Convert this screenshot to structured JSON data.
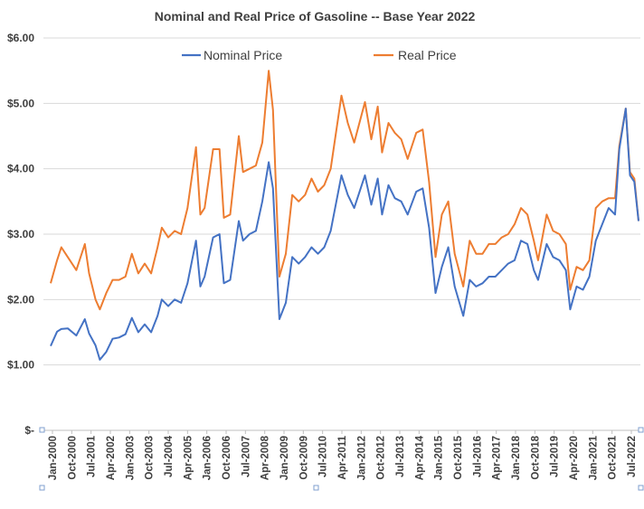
{
  "chart_data": {
    "type": "line",
    "title": "Nominal and Real Price of Gasoline --  Base Year 2022",
    "xlabel": "",
    "ylabel": "",
    "ylim": [
      0,
      6
    ],
    "yticks": [
      0,
      1,
      2,
      3,
      4,
      5,
      6
    ],
    "ytick_labels": [
      "$-",
      "$1.00",
      "$2.00",
      "$3.00",
      "$4.00",
      "$5.00",
      "$6.00"
    ],
    "xtick_labels": [
      "Jan-2000",
      "Oct-2000",
      "Jul-2001",
      "Apr-2002",
      "Jan-2003",
      "Oct-2003",
      "Jul-2004",
      "Apr-2005",
      "Jan-2006",
      "Oct-2006",
      "Jul-2007",
      "Apr-2008",
      "Jan-2009",
      "Oct-2009",
      "Jul-2010",
      "Apr-2011",
      "Jan-2012",
      "Oct-2012",
      "Jul-2013",
      "Apr-2014",
      "Jan-2015",
      "Oct-2015",
      "Jul-2016",
      "Apr-2017",
      "Jan-2018",
      "Oct-2018",
      "Jul-2019",
      "Apr-2020",
      "Jan-2021",
      "Oct-2021",
      "Jul-2022"
    ],
    "grid": true,
    "legend_position": "top-center",
    "series": [
      {
        "name": "Nominal Price",
        "color": "#4472c4",
        "x": [
          "2000-01",
          "2000-04",
          "2000-06",
          "2000-09",
          "2001-01",
          "2001-05",
          "2001-07",
          "2001-10",
          "2001-12",
          "2002-03",
          "2002-06",
          "2002-09",
          "2002-12",
          "2003-03",
          "2003-06",
          "2003-09",
          "2003-12",
          "2004-03",
          "2004-05",
          "2004-08",
          "2004-11",
          "2005-02",
          "2005-05",
          "2005-09",
          "2005-11",
          "2006-01",
          "2006-05",
          "2006-08",
          "2006-10",
          "2007-01",
          "2007-05",
          "2007-07",
          "2007-10",
          "2008-01",
          "2008-04",
          "2008-07",
          "2008-09",
          "2008-12",
          "2009-03",
          "2009-06",
          "2009-09",
          "2009-12",
          "2010-03",
          "2010-06",
          "2010-09",
          "2010-12",
          "2011-05",
          "2011-08",
          "2011-11",
          "2012-04",
          "2012-07",
          "2012-10",
          "2012-12",
          "2013-03",
          "2013-06",
          "2013-09",
          "2013-12",
          "2014-04",
          "2014-07",
          "2014-10",
          "2015-01",
          "2015-04",
          "2015-07",
          "2015-10",
          "2016-02",
          "2016-05",
          "2016-08",
          "2016-11",
          "2017-02",
          "2017-05",
          "2017-08",
          "2017-11",
          "2018-02",
          "2018-05",
          "2018-08",
          "2018-11",
          "2019-01",
          "2019-05",
          "2019-08",
          "2019-11",
          "2020-02",
          "2020-04",
          "2020-07",
          "2020-10",
          "2021-01",
          "2021-04",
          "2021-07",
          "2021-10",
          "2022-01",
          "2022-03",
          "2022-06",
          "2022-08",
          "2022-10",
          "2022-12"
        ],
        "values": [
          1.29,
          1.51,
          1.55,
          1.56,
          1.45,
          1.7,
          1.48,
          1.3,
          1.08,
          1.2,
          1.4,
          1.42,
          1.47,
          1.72,
          1.5,
          1.62,
          1.5,
          1.75,
          2.0,
          1.9,
          2.0,
          1.95,
          2.25,
          2.9,
          2.2,
          2.35,
          2.95,
          3.0,
          2.25,
          2.3,
          3.2,
          2.9,
          3.0,
          3.05,
          3.5,
          4.1,
          3.7,
          1.7,
          1.95,
          2.65,
          2.55,
          2.65,
          2.8,
          2.7,
          2.8,
          3.05,
          3.9,
          3.6,
          3.4,
          3.9,
          3.45,
          3.85,
          3.3,
          3.75,
          3.55,
          3.5,
          3.3,
          3.65,
          3.7,
          3.1,
          2.1,
          2.5,
          2.8,
          2.2,
          1.75,
          2.3,
          2.2,
          2.25,
          2.35,
          2.35,
          2.45,
          2.55,
          2.6,
          2.9,
          2.85,
          2.45,
          2.3,
          2.85,
          2.65,
          2.6,
          2.45,
          1.85,
          2.2,
          2.15,
          2.35,
          2.9,
          3.15,
          3.4,
          3.3,
          4.3,
          4.92,
          3.9,
          3.8,
          3.2
        ]
      },
      {
        "name": "Real Price",
        "color": "#ed7d31",
        "x": [
          "2000-01",
          "2000-04",
          "2000-06",
          "2000-09",
          "2001-01",
          "2001-05",
          "2001-07",
          "2001-10",
          "2001-12",
          "2002-03",
          "2002-06",
          "2002-09",
          "2002-12",
          "2003-03",
          "2003-06",
          "2003-09",
          "2003-12",
          "2004-03",
          "2004-05",
          "2004-08",
          "2004-11",
          "2005-02",
          "2005-05",
          "2005-09",
          "2005-11",
          "2006-01",
          "2006-05",
          "2006-08",
          "2006-10",
          "2007-01",
          "2007-05",
          "2007-07",
          "2007-10",
          "2008-01",
          "2008-04",
          "2008-07",
          "2008-09",
          "2008-12",
          "2009-03",
          "2009-06",
          "2009-09",
          "2009-12",
          "2010-03",
          "2010-06",
          "2010-09",
          "2010-12",
          "2011-05",
          "2011-08",
          "2011-11",
          "2012-04",
          "2012-07",
          "2012-10",
          "2012-12",
          "2013-03",
          "2013-06",
          "2013-09",
          "2013-12",
          "2014-04",
          "2014-07",
          "2014-10",
          "2015-01",
          "2015-04",
          "2015-07",
          "2015-10",
          "2016-02",
          "2016-05",
          "2016-08",
          "2016-11",
          "2017-02",
          "2017-05",
          "2017-08",
          "2017-11",
          "2018-02",
          "2018-05",
          "2018-08",
          "2018-11",
          "2019-01",
          "2019-05",
          "2019-08",
          "2019-11",
          "2020-02",
          "2020-04",
          "2020-07",
          "2020-10",
          "2021-01",
          "2021-04",
          "2021-07",
          "2021-10",
          "2022-01",
          "2022-03",
          "2022-06",
          "2022-08",
          "2022-10",
          "2022-12"
        ],
        "values": [
          2.25,
          2.6,
          2.8,
          2.65,
          2.45,
          2.85,
          2.4,
          2.0,
          1.85,
          2.1,
          2.3,
          2.3,
          2.35,
          2.7,
          2.4,
          2.55,
          2.4,
          2.8,
          3.1,
          2.95,
          3.05,
          3.0,
          3.4,
          4.33,
          3.3,
          3.4,
          4.3,
          4.3,
          3.25,
          3.3,
          4.5,
          3.95,
          4.0,
          4.05,
          4.4,
          5.5,
          4.9,
          2.35,
          2.7,
          3.6,
          3.5,
          3.6,
          3.85,
          3.65,
          3.75,
          4.0,
          5.12,
          4.7,
          4.4,
          5.02,
          4.45,
          4.95,
          4.25,
          4.7,
          4.55,
          4.45,
          4.15,
          4.55,
          4.6,
          3.8,
          2.65,
          3.3,
          3.5,
          2.7,
          2.2,
          2.9,
          2.7,
          2.7,
          2.85,
          2.85,
          2.95,
          3.0,
          3.15,
          3.4,
          3.3,
          2.9,
          2.6,
          3.3,
          3.05,
          3.0,
          2.85,
          2.15,
          2.5,
          2.45,
          2.6,
          3.4,
          3.5,
          3.55,
          3.55,
          4.35,
          4.92,
          3.95,
          3.85,
          3.2
        ]
      }
    ]
  }
}
